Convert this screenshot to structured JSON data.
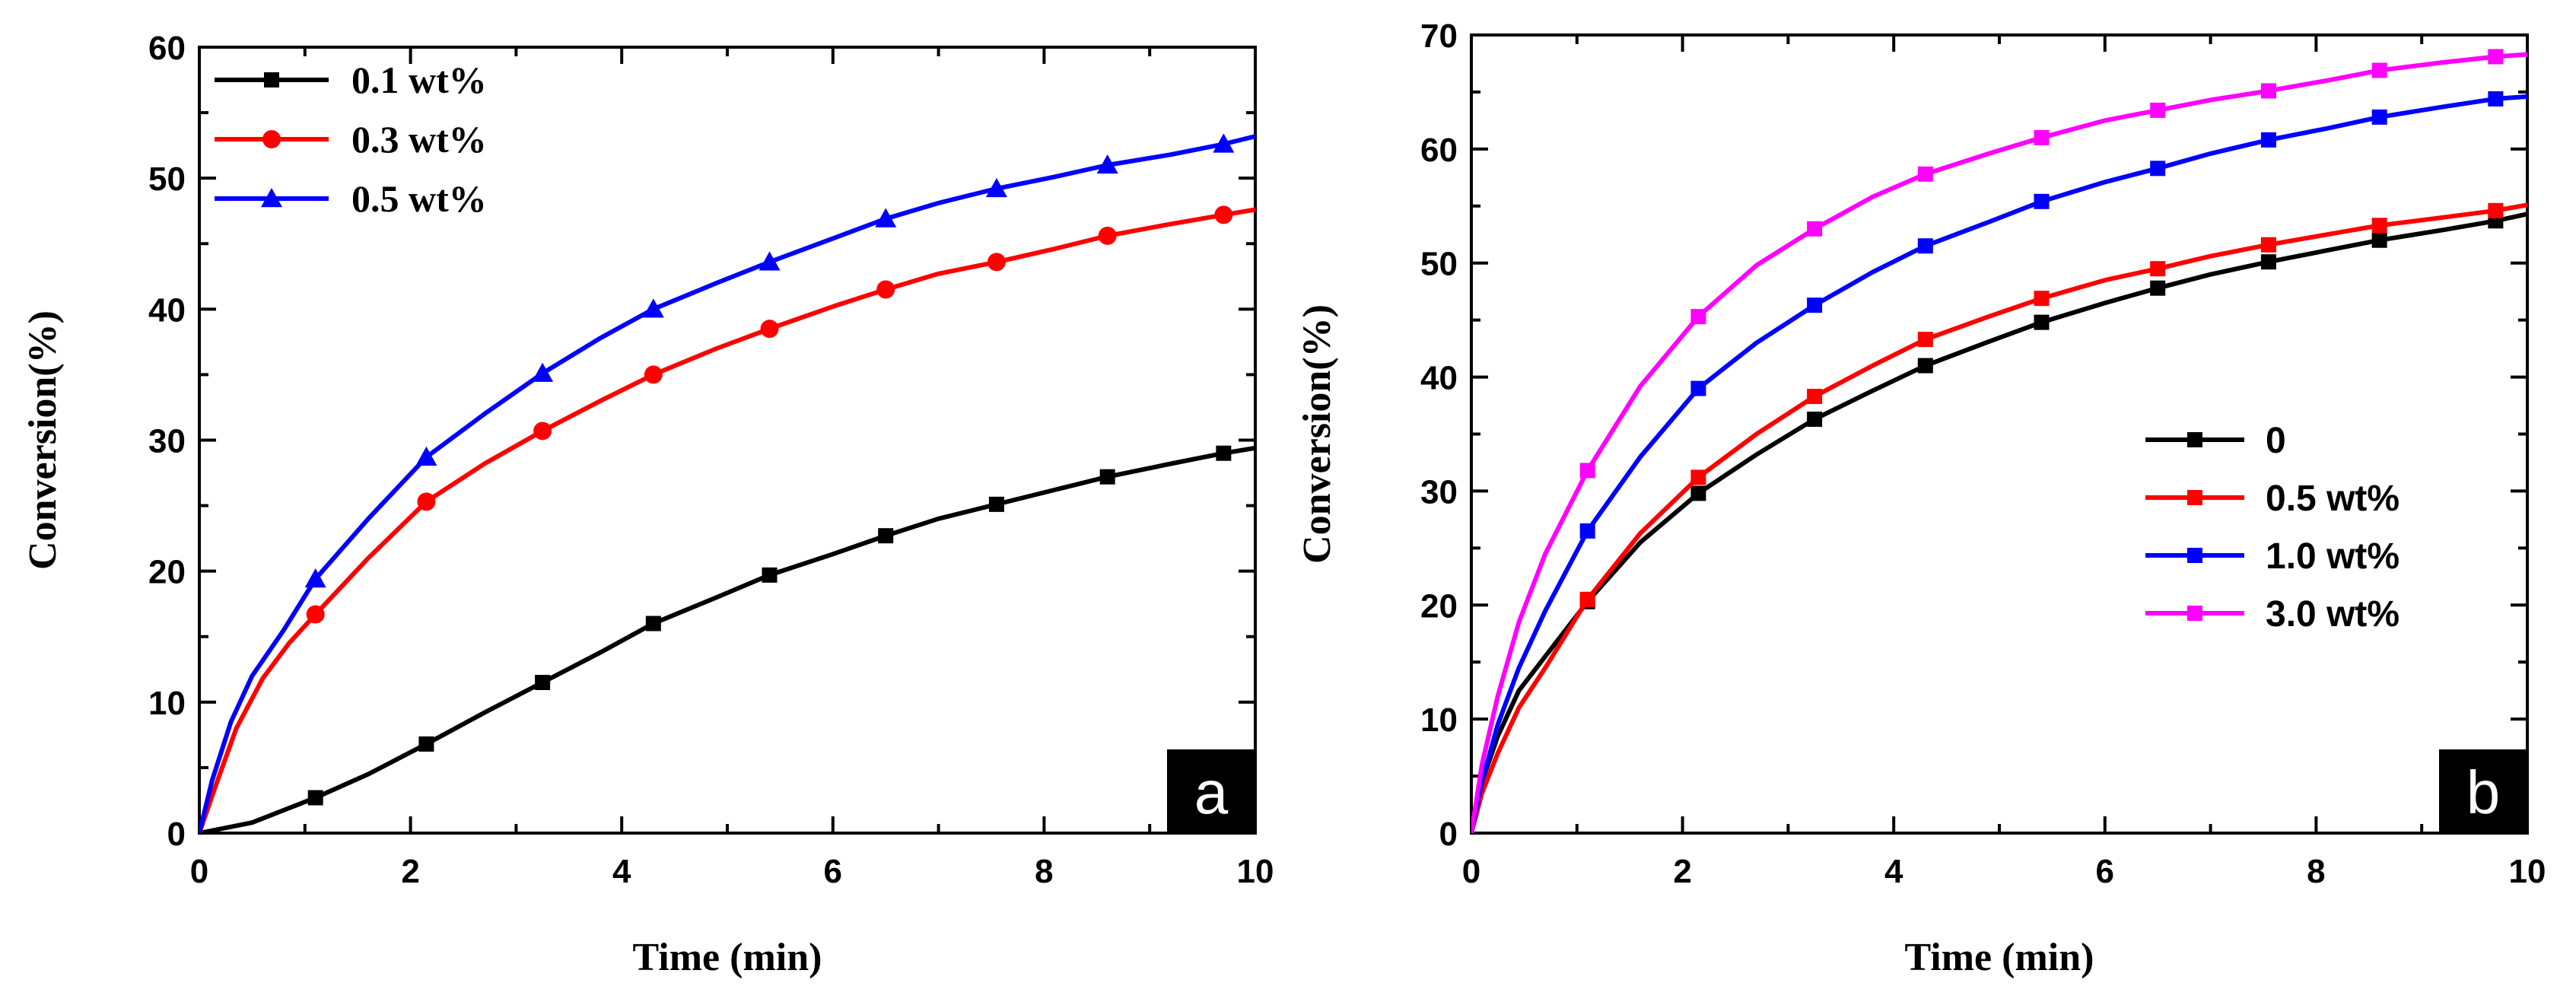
{
  "chart_data": [
    {
      "type": "line",
      "panel_label": "a",
      "title": "",
      "xlabel": "Time (min)",
      "ylabel": "Conversion(%)",
      "xlim": [
        0,
        10
      ],
      "ylim": [
        0,
        60
      ],
      "xticks": [
        0,
        2,
        4,
        6,
        8,
        10
      ],
      "yticks": [
        0,
        10,
        20,
        30,
        40,
        50,
        60
      ],
      "legend_position": "top-left",
      "series": [
        {
          "name": "0.1 wt%",
          "color": "#000000",
          "marker": "square",
          "x": [
            0,
            0.5,
            1.1,
            1.6,
            2.15,
            2.7,
            3.25,
            3.8,
            4.3,
            4.9,
            5.4,
            6.0,
            6.5,
            7.0,
            7.55,
            8.1,
            8.6,
            9.2,
            9.7,
            10
          ],
          "y": [
            0,
            0.8,
            2.7,
            4.5,
            6.8,
            9.2,
            11.5,
            13.8,
            16.0,
            18.0,
            19.7,
            21.3,
            22.7,
            24.0,
            25.1,
            26.2,
            27.2,
            28.2,
            29.0,
            29.4
          ],
          "marker_x": [
            1.1,
            2.15,
            3.25,
            4.3,
            5.4,
            6.5,
            7.55,
            8.6,
            9.7
          ],
          "marker_y": [
            2.7,
            6.8,
            11.5,
            16.0,
            19.7,
            22.7,
            25.1,
            27.2,
            29.0
          ]
        },
        {
          "name": "0.3 wt%",
          "color": "#ff0000",
          "marker": "circle",
          "x": [
            0,
            0.15,
            0.35,
            0.6,
            0.85,
            1.1,
            1.6,
            2.15,
            2.7,
            3.25,
            3.8,
            4.3,
            4.9,
            5.4,
            6.0,
            6.5,
            7.0,
            7.55,
            8.1,
            8.6,
            9.2,
            9.7,
            10
          ],
          "y": [
            0,
            3.5,
            8.0,
            11.8,
            14.5,
            16.7,
            21.0,
            25.3,
            28.2,
            30.7,
            33.0,
            35.0,
            37.0,
            38.5,
            40.2,
            41.5,
            42.7,
            43.6,
            44.6,
            45.6,
            46.5,
            47.2,
            47.6
          ],
          "marker_x": [
            1.1,
            2.15,
            3.25,
            4.3,
            5.4,
            6.5,
            7.55,
            8.6,
            9.7
          ],
          "marker_y": [
            16.7,
            25.3,
            30.7,
            35.0,
            38.5,
            41.5,
            43.6,
            45.6,
            47.2
          ]
        },
        {
          "name": "0.5 wt%",
          "color": "#0000ff",
          "marker": "triangle",
          "x": [
            0,
            0.12,
            0.3,
            0.5,
            0.8,
            1.1,
            1.6,
            2.15,
            2.7,
            3.25,
            3.8,
            4.3,
            4.9,
            5.4,
            6.0,
            6.5,
            7.0,
            7.55,
            8.1,
            8.6,
            9.2,
            9.7,
            10
          ],
          "y": [
            0,
            4.0,
            8.5,
            12.0,
            15.5,
            19.4,
            24.0,
            28.7,
            32.0,
            35.1,
            37.8,
            40.0,
            42.0,
            43.6,
            45.4,
            46.9,
            48.1,
            49.2,
            50.1,
            51.0,
            51.8,
            52.6,
            53.2
          ],
          "marker_x": [
            1.1,
            2.15,
            3.25,
            4.3,
            5.4,
            6.5,
            7.55,
            8.6,
            9.7
          ],
          "marker_y": [
            19.4,
            28.7,
            35.1,
            40.0,
            43.6,
            46.9,
            49.2,
            51.0,
            52.6
          ]
        }
      ]
    },
    {
      "type": "line",
      "panel_label": "b",
      "title": "",
      "xlabel": "Time (min)",
      "ylabel": "Conversion(%)",
      "xlim": [
        0,
        10
      ],
      "ylim": [
        0,
        70
      ],
      "xticks": [
        0,
        2,
        4,
        6,
        8,
        10
      ],
      "yticks": [
        0,
        10,
        20,
        30,
        40,
        50,
        60,
        70
      ],
      "legend_position": "center-right",
      "series": [
        {
          "name": "0",
          "color": "#000000",
          "marker": "square",
          "x": [
            0,
            0.1,
            0.25,
            0.45,
            0.7,
            1.1,
            1.6,
            2.15,
            2.7,
            3.25,
            3.8,
            4.3,
            4.9,
            5.4,
            6.0,
            6.5,
            7.0,
            7.55,
            8.1,
            8.6,
            9.2,
            9.7,
            10
          ],
          "y": [
            0,
            4.5,
            8.5,
            12.5,
            15.5,
            20.3,
            25.5,
            29.8,
            33.2,
            36.3,
            38.8,
            41.0,
            43.1,
            44.8,
            46.5,
            47.8,
            49.0,
            50.1,
            51.1,
            52.0,
            52.9,
            53.7,
            54.3
          ],
          "marker_x": [
            1.1,
            2.15,
            3.25,
            4.3,
            5.4,
            6.5,
            7.55,
            8.6,
            9.7
          ],
          "marker_y": [
            20.3,
            29.8,
            36.3,
            41.0,
            44.8,
            47.8,
            50.1,
            52.0,
            53.7
          ]
        },
        {
          "name": "0.5 wt%",
          "color": "#ff0000",
          "marker": "square",
          "x": [
            0,
            0.1,
            0.25,
            0.45,
            0.7,
            1.1,
            1.6,
            2.15,
            2.7,
            3.25,
            3.8,
            4.3,
            4.9,
            5.4,
            6.0,
            6.5,
            7.0,
            7.55,
            8.1,
            8.6,
            9.2,
            9.7,
            10
          ],
          "y": [
            0,
            3.5,
            7.0,
            11.0,
            14.5,
            20.5,
            26.3,
            31.2,
            35.0,
            38.3,
            41.0,
            43.3,
            45.3,
            46.9,
            48.5,
            49.5,
            50.6,
            51.6,
            52.5,
            53.3,
            54.0,
            54.6,
            55.1
          ],
          "marker_x": [
            1.1,
            2.15,
            3.25,
            4.3,
            5.4,
            6.5,
            7.55,
            8.6,
            9.7
          ],
          "marker_y": [
            20.5,
            31.2,
            38.3,
            43.3,
            46.9,
            49.5,
            51.6,
            53.3,
            54.6
          ]
        },
        {
          "name": "1.0 wt%",
          "color": "#0000ff",
          "marker": "square",
          "x": [
            0,
            0.1,
            0.25,
            0.45,
            0.7,
            1.1,
            1.6,
            2.15,
            2.7,
            3.25,
            3.8,
            4.3,
            4.9,
            5.4,
            6.0,
            6.5,
            7.0,
            7.55,
            8.1,
            8.6,
            9.2,
            9.7,
            10
          ],
          "y": [
            0,
            4.5,
            9.5,
            14.5,
            19.5,
            26.5,
            33.0,
            39.0,
            43.0,
            46.3,
            49.2,
            51.5,
            53.6,
            55.4,
            57.1,
            58.3,
            59.6,
            60.8,
            61.8,
            62.8,
            63.7,
            64.4,
            64.6
          ],
          "marker_x": [
            1.1,
            2.15,
            3.25,
            4.3,
            5.4,
            6.5,
            7.55,
            8.6,
            9.7
          ],
          "marker_y": [
            26.5,
            39.0,
            46.3,
            51.5,
            55.4,
            58.3,
            60.8,
            62.8,
            64.4
          ]
        },
        {
          "name": "3.0 wt%",
          "color": "#ff00ff",
          "marker": "square",
          "x": [
            0,
            0.1,
            0.25,
            0.45,
            0.7,
            1.1,
            1.6,
            2.15,
            2.7,
            3.25,
            3.8,
            4.3,
            4.9,
            5.4,
            6.0,
            6.5,
            7.0,
            7.55,
            8.1,
            8.6,
            9.2,
            9.7,
            10
          ],
          "y": [
            0,
            6.0,
            12.0,
            18.5,
            24.5,
            31.8,
            39.2,
            45.3,
            49.8,
            53.0,
            55.8,
            57.8,
            59.6,
            61.0,
            62.5,
            63.4,
            64.3,
            65.1,
            66.0,
            66.9,
            67.6,
            68.1,
            68.3
          ],
          "marker_x": [
            1.1,
            2.15,
            3.25,
            4.3,
            5.4,
            6.5,
            7.55,
            8.6,
            9.7
          ],
          "marker_y": [
            31.8,
            45.3,
            53.0,
            57.8,
            61.0,
            63.4,
            65.1,
            66.9,
            68.1
          ]
        }
      ]
    }
  ]
}
